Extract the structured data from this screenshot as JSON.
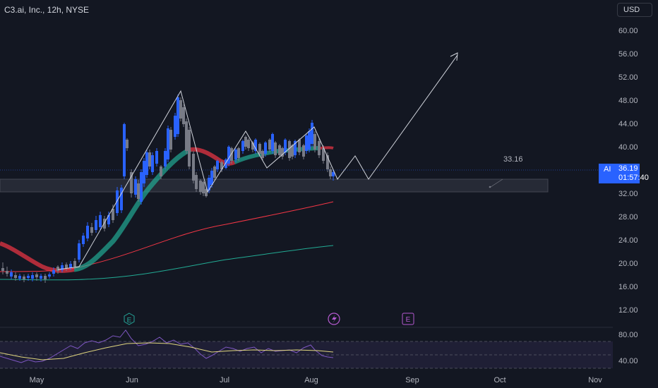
{
  "header": {
    "title": "C3.ai, Inc., 12h, NYSE",
    "currency": "USD"
  },
  "price_axis": {
    "ticks": [
      "60.00",
      "56.00",
      "52.00",
      "48.00",
      "44.00",
      "40.00",
      "32.00",
      "28.00",
      "24.00",
      "20.00",
      "16.00",
      "12.00"
    ]
  },
  "rsi_axis": {
    "ticks": [
      "80.00",
      "40.00"
    ]
  },
  "time_axis": {
    "ticks": [
      "May",
      "Jun",
      "Jul",
      "Aug",
      "Sep",
      "Oct",
      "Nov"
    ]
  },
  "last_price": {
    "symbol": "AI",
    "price": "36.19",
    "countdown": "01:57:40"
  },
  "annotation": {
    "label": "33.16"
  },
  "events": {
    "earnings_1": "E",
    "earnings_2": "E"
  },
  "colors": {
    "up": "#2962ff",
    "down": "#787b86",
    "ma_up": "#22ab94",
    "ma_down": "#f23645",
    "rsi": "#7e57c2",
    "rsi_ma": "#e0d67e"
  },
  "chart_data": {
    "type": "candlestick",
    "y_range": [
      10,
      62
    ],
    "x_range": [
      "2023-04-22",
      "2023-11-12"
    ],
    "support_zone": [
      32.4,
      34.1
    ],
    "sma_red_end": 30.7,
    "sma_green_end": 23.3,
    "projection_target": 56.0
  }
}
